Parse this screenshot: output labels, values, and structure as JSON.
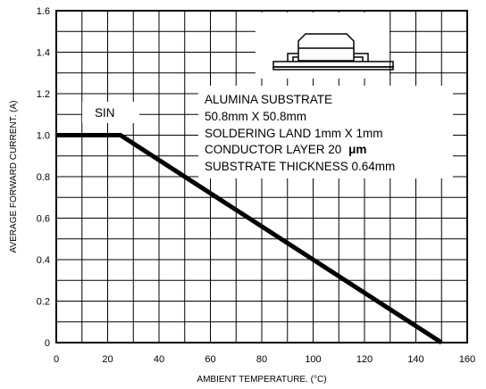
{
  "chart_data": {
    "type": "line",
    "title": "",
    "xlabel": "AMBIENT TEMPERATURE. (",
    "xlabel_unit": "°C",
    "xlabel_close": ")",
    "ylabel": "AVERAGE FORWARD CURRENT. (A)",
    "xlim": [
      0,
      160
    ],
    "ylim": [
      0,
      1.6
    ],
    "x_minor_step": 10,
    "y_minor_step": 0.1,
    "x_ticks": [
      0,
      20,
      40,
      60,
      80,
      100,
      120,
      140,
      160
    ],
    "x_tick_labels": [
      "0",
      "20",
      "40",
      "60",
      "80",
      "100",
      "120",
      "140",
      "160"
    ],
    "y_ticks": [
      0,
      0.2,
      0.4,
      0.6,
      0.8,
      1.0,
      1.2,
      1.4,
      1.6
    ],
    "y_tick_labels": [
      "0",
      "0.2",
      "0.4",
      "0.6",
      "0.8",
      "1.0",
      "1.2",
      "1.4",
      "1.6"
    ],
    "grid": true,
    "series": [
      {
        "x": [
          0,
          25,
          150
        ],
        "y": [
          1.0,
          1.0,
          0
        ]
      }
    ],
    "annotations": {
      "waveform_label": "SIN",
      "notes": [
        "ALUMINA SUBSTRATE",
        "50.8mm X 50.8mm",
        "SOLDERING LAND 1mm X 1mm",
        "CONDUCTOR LAYER 20",
        "SUBSTRATE THICKNESS 0.64mm"
      ],
      "conductor_unit": "μm",
      "inset_icon": "smd-package-on-substrate-icon"
    }
  }
}
